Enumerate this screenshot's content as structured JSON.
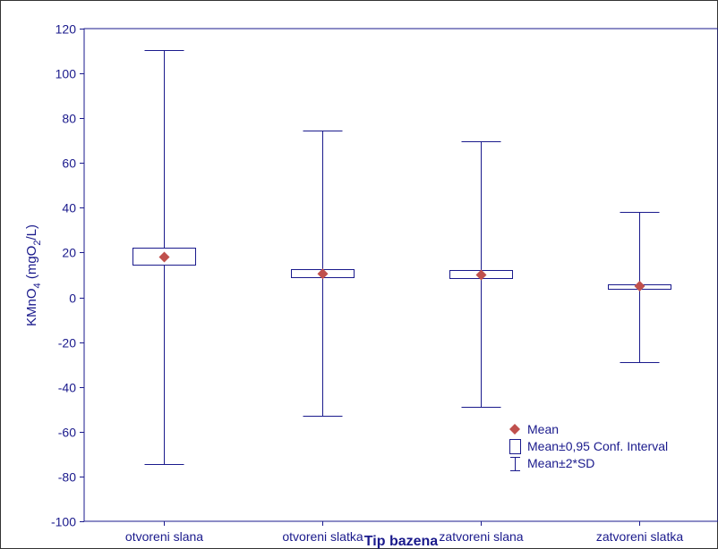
{
  "chart_data": {
    "type": "box",
    "categories": [
      "otvoreni slana",
      "otvoreni slatka",
      "zatvoreni slana",
      "zatvoreni slatka"
    ],
    "series": [
      {
        "name": "Mean",
        "values": [
          18,
          10.5,
          10,
          5
        ]
      },
      {
        "name": "Mean±0,95 Conf. Interval",
        "low": [
          14.5,
          9,
          8.5,
          4
        ],
        "high": [
          22,
          12.5,
          12,
          6
        ]
      },
      {
        "name": "Mean±2*SD",
        "low": [
          -74.5,
          -53,
          -49,
          -29
        ],
        "high": [
          110.5,
          74.5,
          69.5,
          38
        ]
      }
    ],
    "xlabel": "Tip bazena",
    "ylabel": {
      "main": "KMnO",
      "sub1": "4",
      "mid": " (mgO",
      "sub2": "2",
      "end": "/L)"
    },
    "ylim": [
      -100,
      120
    ],
    "yticks": [
      -100,
      -80,
      -60,
      -40,
      -20,
      0,
      20,
      40,
      60,
      80,
      100,
      120
    ],
    "grid": false,
    "legend_position": "bottom-right",
    "colors": {
      "axis": "#1a1a8c",
      "mean_marker": "#c0504d"
    }
  }
}
